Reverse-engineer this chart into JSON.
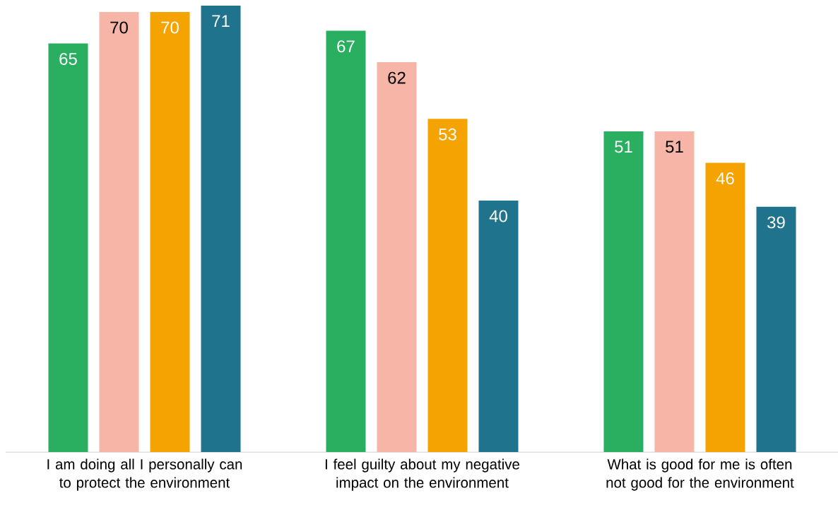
{
  "chart_data": {
    "type": "bar",
    "categories": [
      "I am doing all I personally can to protect the environment",
      "I feel guilty about my negative impact on the environment",
      "What is good for me is often not good for the environment"
    ],
    "series": [
      {
        "color": "#2aaf61",
        "values": [
          65,
          67,
          51
        ]
      },
      {
        "color": "#f7b5a8",
        "values": [
          70,
          62,
          51
        ]
      },
      {
        "color": "#f4a300",
        "values": [
          70,
          53,
          46
        ]
      },
      {
        "color": "#1f738c",
        "values": [
          71,
          40,
          39
        ]
      }
    ],
    "data_labels": true
  }
}
